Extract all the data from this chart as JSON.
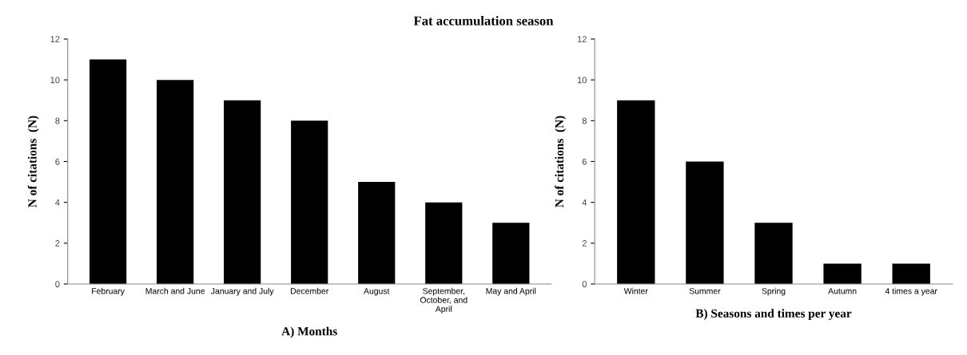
{
  "chart_data": [
    {
      "type": "bar",
      "title": "Fat accumulation season",
      "xlabel": "A) Months",
      "ylabel": "N of citations  (N)",
      "categories": [
        "February",
        "March and June",
        "January and July",
        "December",
        "August",
        "September,\nOctober, and\nApril",
        "May and April"
      ],
      "values": [
        11,
        10,
        9,
        8,
        5,
        4,
        3
      ],
      "color": "#000000",
      "ylim": [
        0,
        12
      ],
      "yticks": [
        0,
        2,
        4,
        6,
        8,
        10,
        12
      ],
      "grid": false
    },
    {
      "type": "bar",
      "xlabel": "B) Seasons and times per year",
      "ylabel": "N of citations  (N)",
      "categories": [
        "Winter",
        "Summer",
        "Spring",
        "Autumn",
        "4 times a year"
      ],
      "values": [
        9,
        6,
        3,
        1,
        1
      ],
      "color": "#000000",
      "ylim": [
        0,
        12
      ],
      "yticks": [
        0,
        2,
        4,
        6,
        8,
        10,
        12
      ],
      "grid": false
    }
  ]
}
